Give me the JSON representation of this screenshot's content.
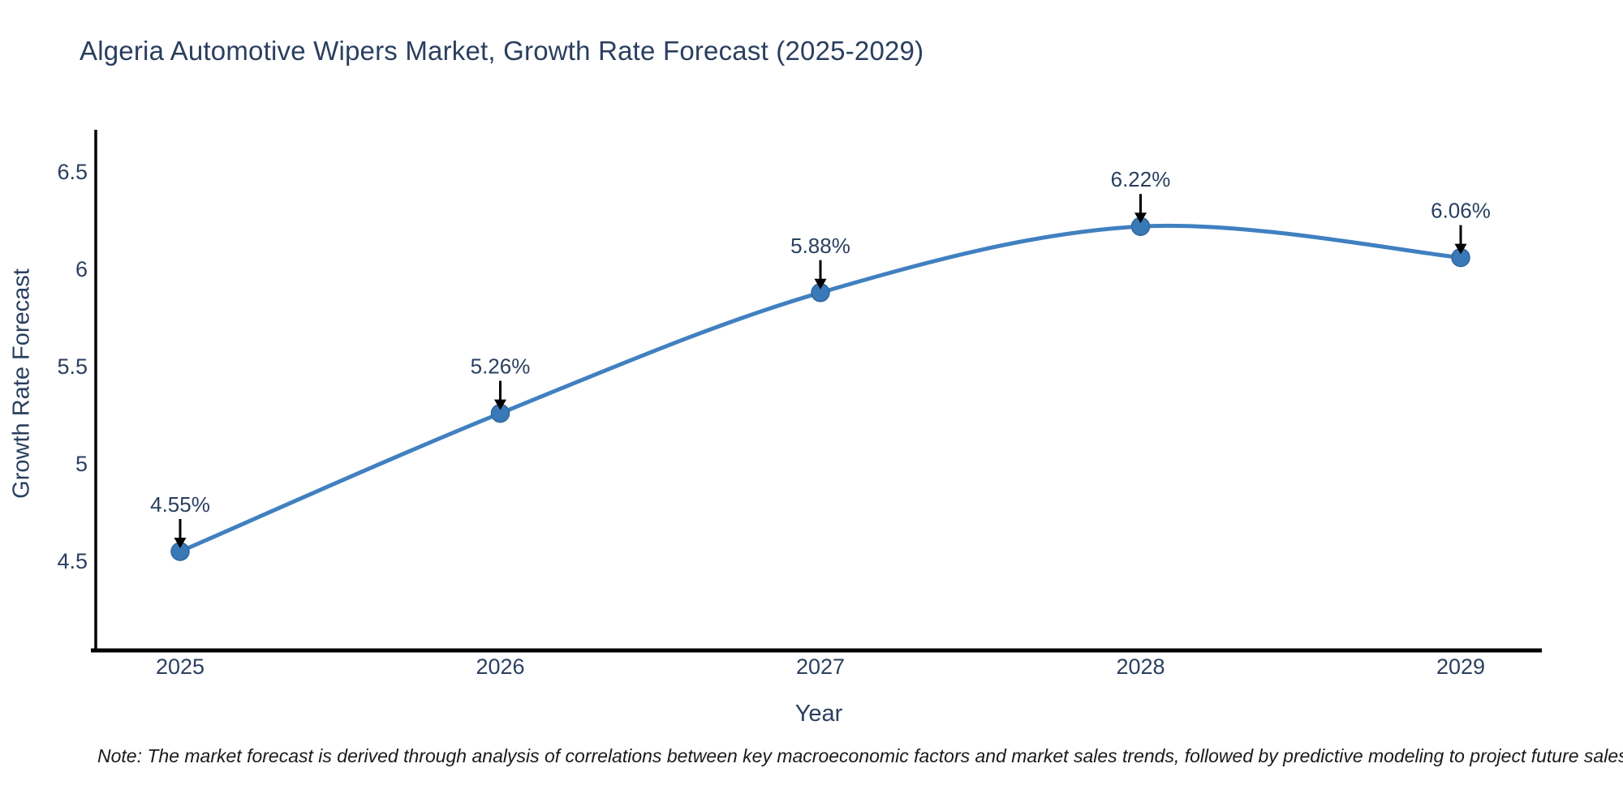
{
  "page": {
    "background": "#ffffff"
  },
  "chart_data": {
    "type": "line",
    "line_shape": "spline",
    "title": "Algeria Automotive Wipers Market, Growth Rate Forecast (2025-2029)",
    "xlabel": "Year",
    "ylabel": "Growth Rate Forecast",
    "x": [
      "2025",
      "2026",
      "2027",
      "2028",
      "2029"
    ],
    "values": [
      4.55,
      5.26,
      5.88,
      6.22,
      6.06
    ],
    "labels": [
      "4.55%",
      "5.26%",
      "5.88%",
      "6.22%",
      "6.06%"
    ],
    "unit": "%",
    "yticks": [
      {
        "value": 4.5,
        "label": "4.5"
      },
      {
        "value": 5,
        "label": "5"
      },
      {
        "value": 5.5,
        "label": "5.5"
      },
      {
        "value": 6,
        "label": "6"
      },
      {
        "value": 6.5,
        "label": "6.5"
      }
    ],
    "ylim": [
      4.04,
      6.72
    ],
    "grid": false,
    "legend": "none",
    "colors": {
      "line": "#4080c0",
      "marker": "#3a79b8",
      "marker_edge": "#2f669e",
      "text": "#2a3f5f",
      "axis": "#000000",
      "annotation_arrow": "#000000"
    },
    "note": "Note: The market forecast is derived through analysis of correlations between key macroeconomic factors and market sales trends, followed by predictive modeling to project future sales trends."
  }
}
